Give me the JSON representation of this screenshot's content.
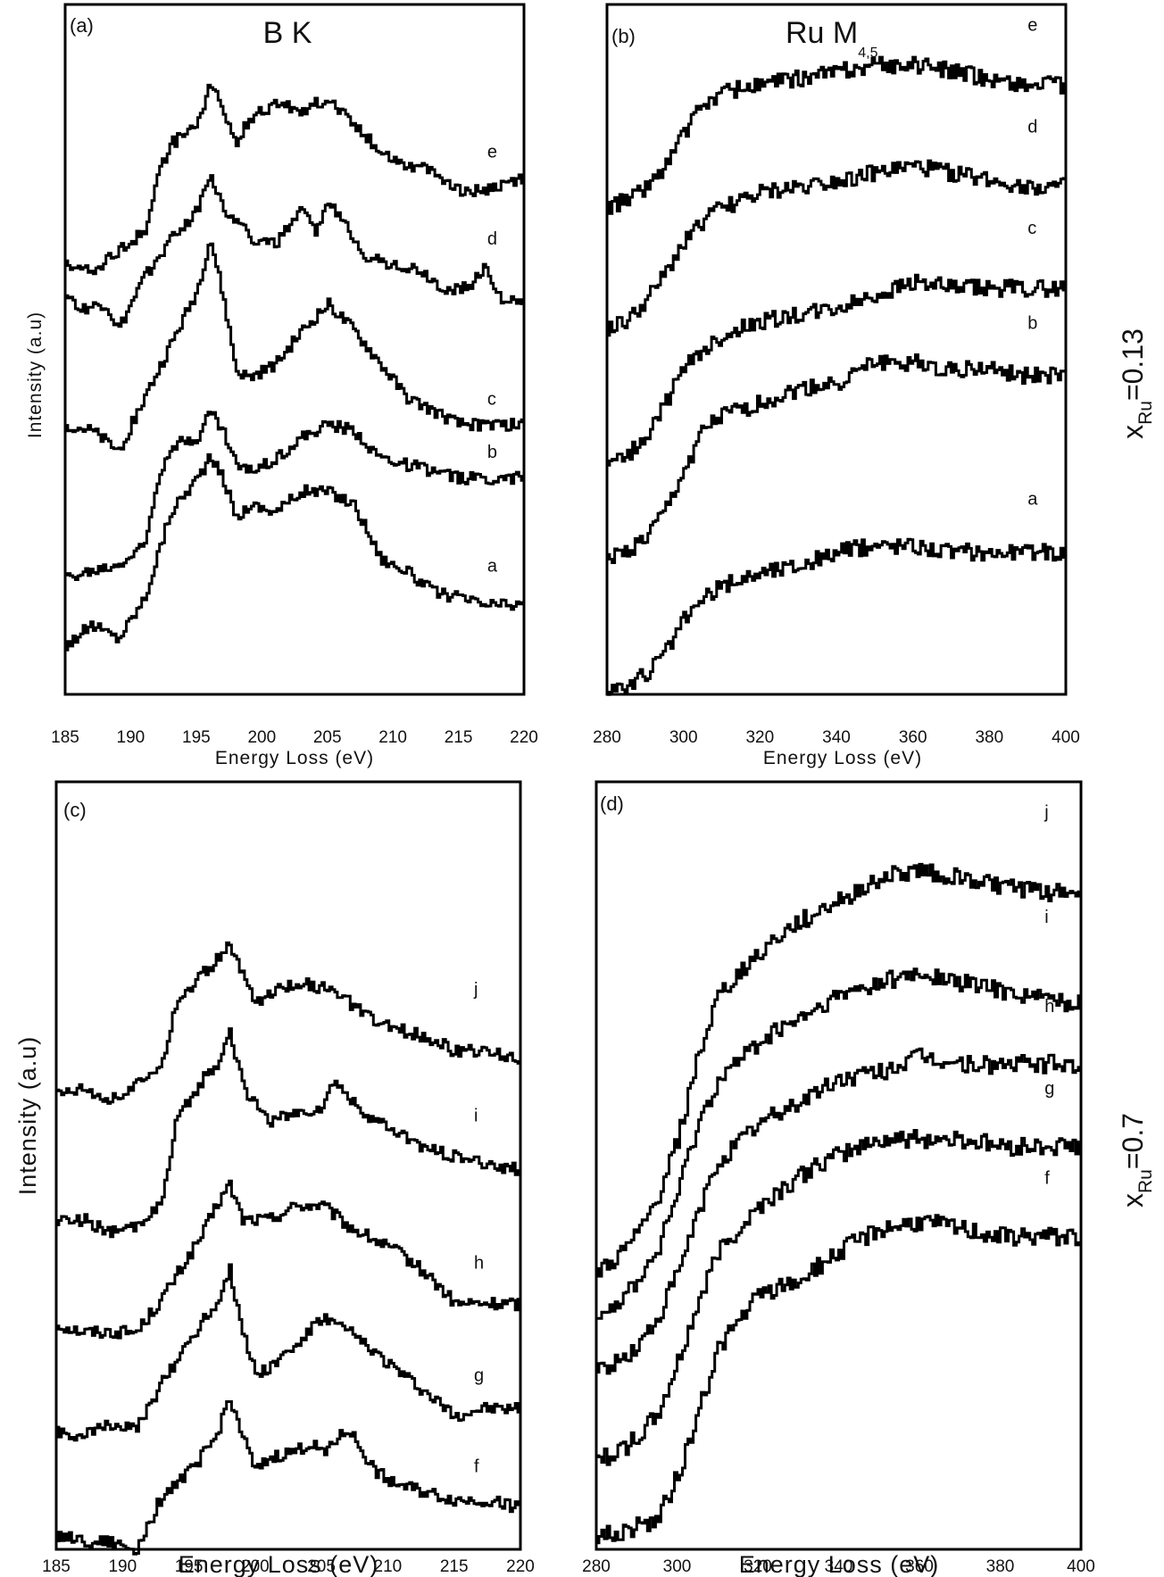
{
  "colors": {
    "line": "#000000",
    "background": "#ffffff"
  },
  "side_labels": [
    {
      "base": "x",
      "sub": "Ru",
      "rest": "=0.13"
    },
    {
      "base": "x",
      "sub": "Ru",
      "rest": "=0.7"
    }
  ],
  "chart_data": [
    {
      "panel": "(a)",
      "title": "B K",
      "type": "line",
      "xlabel": "Energy Loss (eV)",
      "ylabel": "Intensity (a.u)",
      "xlim": [
        185,
        220
      ],
      "xticks": [
        "185",
        "190",
        "195",
        "200",
        "205",
        "210",
        "215",
        "220"
      ],
      "series": [
        {
          "name": "a",
          "x": [
            185,
            187,
            189,
            191,
            193,
            195,
            196,
            197,
            198,
            199,
            201,
            203,
            205,
            207,
            209,
            211,
            213,
            215,
            217,
            220
          ],
          "y": [
            0.05,
            0.08,
            0.06,
            0.12,
            0.25,
            0.3,
            0.33,
            0.3,
            0.24,
            0.26,
            0.25,
            0.28,
            0.28,
            0.26,
            0.18,
            0.16,
            0.13,
            0.12,
            0.11,
            0.11
          ]
        },
        {
          "name": "b",
          "x": [
            185,
            187,
            189,
            191,
            192,
            193,
            195,
            196,
            197,
            198,
            199,
            201,
            203,
            205,
            207,
            209,
            211,
            213,
            215,
            217,
            220
          ],
          "y": [
            0.15,
            0.16,
            0.17,
            0.2,
            0.3,
            0.35,
            0.36,
            0.4,
            0.37,
            0.32,
            0.31,
            0.33,
            0.36,
            0.38,
            0.37,
            0.33,
            0.32,
            0.31,
            0.3,
            0.3,
            0.3
          ]
        },
        {
          "name": "c",
          "x": [
            185,
            187,
            189,
            191,
            193,
            195,
            196,
            197,
            198,
            199,
            201,
            203,
            205,
            207,
            209,
            211,
            213,
            215,
            217,
            220
          ],
          "y": [
            0.38,
            0.37,
            0.34,
            0.42,
            0.5,
            0.58,
            0.66,
            0.57,
            0.46,
            0.45,
            0.47,
            0.52,
            0.56,
            0.52,
            0.47,
            0.42,
            0.4,
            0.38,
            0.38,
            0.38
          ]
        },
        {
          "name": "d",
          "x": [
            185,
            186,
            188,
            189,
            191,
            193,
            195,
            196,
            197,
            198,
            199,
            201,
            203,
            204,
            205,
            206,
            208,
            210,
            212,
            214,
            216,
            217,
            218,
            220
          ],
          "y": [
            0.58,
            0.55,
            0.56,
            0.52,
            0.6,
            0.66,
            0.7,
            0.76,
            0.7,
            0.69,
            0.66,
            0.65,
            0.7,
            0.67,
            0.71,
            0.69,
            0.63,
            0.62,
            0.61,
            0.58,
            0.59,
            0.62,
            0.57,
            0.56
          ]
        },
        {
          "name": "e",
          "x": [
            185,
            187,
            189,
            191,
            192,
            193,
            195,
            196,
            197,
            198,
            199,
            201,
            203,
            205,
            207,
            209,
            211,
            213,
            215,
            217,
            220
          ],
          "y": [
            0.62,
            0.61,
            0.64,
            0.67,
            0.75,
            0.8,
            0.83,
            0.89,
            0.85,
            0.8,
            0.84,
            0.86,
            0.85,
            0.87,
            0.83,
            0.79,
            0.77,
            0.76,
            0.73,
            0.73,
            0.75
          ]
        }
      ],
      "curve_labels": [
        {
          "text": "e",
          "x": 217.2,
          "y": 0.78
        },
        {
          "text": "d",
          "x": 217.2,
          "y": 0.65
        },
        {
          "text": "c",
          "x": 217.2,
          "y": 0.41
        },
        {
          "text": "b",
          "x": 217.2,
          "y": 0.33
        },
        {
          "text": "a",
          "x": 217.2,
          "y": 0.16
        }
      ]
    },
    {
      "panel": "(b)",
      "title": "Ru M",
      "title_sub": "4,5",
      "type": "line",
      "xlabel": "Energy Loss (eV)",
      "ylabel": "",
      "xlim": [
        280,
        400
      ],
      "xticks": [
        "280",
        "300",
        "320",
        "340",
        "360",
        "380",
        "400"
      ],
      "series": [
        {
          "name": "a",
          "x": [
            280,
            285,
            290,
            295,
            300,
            305,
            310,
            320,
            330,
            340,
            350,
            360,
            370,
            380,
            390,
            400
          ],
          "y": [
            0.0,
            0.0,
            0.02,
            0.05,
            0.1,
            0.13,
            0.15,
            0.17,
            0.18,
            0.2,
            0.21,
            0.21,
            0.2,
            0.2,
            0.2,
            0.2
          ]
        },
        {
          "name": "b",
          "x": [
            280,
            285,
            290,
            295,
            300,
            305,
            310,
            320,
            330,
            340,
            350,
            360,
            370,
            380,
            390,
            400
          ],
          "y": [
            0.19,
            0.2,
            0.22,
            0.26,
            0.32,
            0.38,
            0.4,
            0.42,
            0.44,
            0.45,
            0.48,
            0.48,
            0.47,
            0.47,
            0.46,
            0.46
          ]
        },
        {
          "name": "c",
          "x": [
            280,
            285,
            290,
            295,
            300,
            305,
            310,
            320,
            330,
            340,
            350,
            360,
            370,
            380,
            390,
            400
          ],
          "y": [
            0.33,
            0.34,
            0.37,
            0.42,
            0.47,
            0.5,
            0.52,
            0.54,
            0.55,
            0.56,
            0.58,
            0.6,
            0.59,
            0.59,
            0.59,
            0.59
          ]
        },
        {
          "name": "d",
          "x": [
            280,
            285,
            290,
            295,
            300,
            305,
            310,
            320,
            330,
            340,
            350,
            360,
            370,
            380,
            390,
            400
          ],
          "y": [
            0.53,
            0.54,
            0.57,
            0.61,
            0.66,
            0.69,
            0.71,
            0.73,
            0.74,
            0.75,
            0.76,
            0.77,
            0.76,
            0.75,
            0.74,
            0.74
          ]
        },
        {
          "name": "e",
          "x": [
            280,
            285,
            290,
            295,
            300,
            305,
            310,
            320,
            330,
            340,
            350,
            360,
            370,
            380,
            390,
            400
          ],
          "y": [
            0.71,
            0.72,
            0.74,
            0.77,
            0.82,
            0.86,
            0.88,
            0.89,
            0.9,
            0.91,
            0.92,
            0.92,
            0.91,
            0.9,
            0.89,
            0.89
          ]
        }
      ],
      "curve_labels": [
        {
          "text": "e",
          "x": 390,
          "y": 0.97
        },
        {
          "text": "d",
          "x": 390,
          "y": 0.82
        },
        {
          "text": "c",
          "x": 390,
          "y": 0.67
        },
        {
          "text": "b",
          "x": 390,
          "y": 0.53
        },
        {
          "text": "a",
          "x": 390,
          "y": 0.27
        }
      ]
    },
    {
      "panel": "(c)",
      "title": "",
      "type": "line",
      "xlabel": "Energy Loss  (eV)",
      "ylabel": "Intensity (a.u)",
      "xlim": [
        185,
        220
      ],
      "xticks": [
        "185",
        "190",
        "195",
        "200",
        "205",
        "210",
        "215",
        "220"
      ],
      "series": [
        {
          "name": "f",
          "x": [
            185,
            187,
            189,
            191,
            192,
            193,
            195,
            197,
            198,
            199,
            200,
            201,
            203,
            204,
            205,
            207,
            209,
            211,
            213,
            215,
            217,
            220
          ],
          "y": [
            0.02,
            0.01,
            0.01,
            0.0,
            0.04,
            0.08,
            0.11,
            0.16,
            0.22,
            0.16,
            0.11,
            0.13,
            0.14,
            0.15,
            0.14,
            0.17,
            0.11,
            0.09,
            0.08,
            0.07,
            0.07,
            0.06
          ]
        },
        {
          "name": "g",
          "x": [
            185,
            187,
            189,
            191,
            193,
            195,
            197,
            198,
            199,
            200,
            201,
            203,
            205,
            207,
            209,
            211,
            213,
            215,
            217,
            220
          ],
          "y": [
            0.17,
            0.16,
            0.18,
            0.17,
            0.24,
            0.3,
            0.35,
            0.4,
            0.31,
            0.25,
            0.26,
            0.29,
            0.33,
            0.31,
            0.28,
            0.25,
            0.22,
            0.19,
            0.2,
            0.2
          ]
        },
        {
          "name": "h",
          "x": [
            185,
            187,
            189,
            191,
            193,
            195,
            196,
            197,
            198,
            199,
            201,
            203,
            205,
            207,
            209,
            211,
            213,
            215,
            217,
            220
          ],
          "y": [
            0.32,
            0.31,
            0.31,
            0.31,
            0.36,
            0.42,
            0.45,
            0.49,
            0.52,
            0.47,
            0.47,
            0.49,
            0.49,
            0.46,
            0.44,
            0.42,
            0.39,
            0.35,
            0.35,
            0.35
          ]
        },
        {
          "name": "i",
          "x": [
            185,
            187,
            189,
            191,
            193,
            194,
            195,
            196,
            197,
            198,
            199,
            201,
            203,
            205,
            206,
            207,
            209,
            211,
            213,
            215,
            217,
            220
          ],
          "y": [
            0.47,
            0.47,
            0.45,
            0.46,
            0.5,
            0.61,
            0.64,
            0.67,
            0.69,
            0.74,
            0.66,
            0.61,
            0.62,
            0.63,
            0.67,
            0.64,
            0.61,
            0.59,
            0.57,
            0.56,
            0.55,
            0.54
          ]
        },
        {
          "name": "j",
          "x": [
            185,
            187,
            189,
            191,
            193,
            194,
            195,
            196,
            197,
            198,
            199,
            200,
            201,
            203,
            205,
            207,
            209,
            211,
            213,
            215,
            217,
            220
          ],
          "y": [
            0.65,
            0.66,
            0.64,
            0.66,
            0.7,
            0.78,
            0.8,
            0.82,
            0.84,
            0.86,
            0.82,
            0.78,
            0.79,
            0.81,
            0.8,
            0.78,
            0.75,
            0.74,
            0.73,
            0.71,
            0.71,
            0.7
          ]
        }
      ],
      "curve_labels": [
        {
          "text": "j",
          "x": 216.5,
          "y": 0.79
        },
        {
          "text": "i",
          "x": 216.5,
          "y": 0.61
        },
        {
          "text": "h",
          "x": 216.5,
          "y": 0.4
        },
        {
          "text": "g",
          "x": 216.5,
          "y": 0.24
        },
        {
          "text": "f",
          "x": 216.5,
          "y": 0.11
        }
      ]
    },
    {
      "panel": "(d)",
      "title": "",
      "type": "line",
      "xlabel": "Energy Loss (eV)",
      "ylabel": "",
      "xlim": [
        280,
        400
      ],
      "xticks": [
        "280",
        "300",
        "320",
        "340",
        "360",
        "380",
        "400"
      ],
      "series": [
        {
          "name": "f",
          "x": [
            280,
            285,
            290,
            295,
            300,
            305,
            310,
            320,
            330,
            340,
            350,
            360,
            370,
            380,
            390,
            400
          ],
          "y": [
            0.02,
            0.02,
            0.03,
            0.04,
            0.1,
            0.18,
            0.27,
            0.34,
            0.36,
            0.4,
            0.43,
            0.44,
            0.43,
            0.42,
            0.42,
            0.42
          ]
        },
        {
          "name": "g",
          "x": [
            280,
            285,
            290,
            295,
            300,
            305,
            310,
            320,
            330,
            340,
            350,
            360,
            370,
            380,
            390,
            400
          ],
          "y": [
            0.12,
            0.13,
            0.15,
            0.18,
            0.25,
            0.33,
            0.4,
            0.46,
            0.5,
            0.53,
            0.55,
            0.55,
            0.55,
            0.54,
            0.54,
            0.54
          ]
        },
        {
          "name": "h",
          "x": [
            280,
            285,
            290,
            295,
            300,
            305,
            310,
            320,
            330,
            340,
            350,
            360,
            370,
            380,
            390,
            400
          ],
          "y": [
            0.24,
            0.25,
            0.27,
            0.31,
            0.37,
            0.45,
            0.52,
            0.57,
            0.6,
            0.63,
            0.64,
            0.66,
            0.65,
            0.65,
            0.65,
            0.65
          ]
        },
        {
          "name": "i",
          "x": [
            280,
            285,
            290,
            295,
            300,
            305,
            310,
            320,
            330,
            340,
            350,
            360,
            370,
            380,
            390,
            400
          ],
          "y": [
            0.32,
            0.33,
            0.36,
            0.4,
            0.48,
            0.57,
            0.63,
            0.68,
            0.71,
            0.74,
            0.76,
            0.77,
            0.76,
            0.75,
            0.74,
            0.73
          ]
        },
        {
          "name": "j",
          "x": [
            280,
            285,
            290,
            295,
            300,
            305,
            310,
            320,
            330,
            340,
            350,
            360,
            370,
            380,
            390,
            400
          ],
          "y": [
            0.37,
            0.39,
            0.42,
            0.47,
            0.55,
            0.66,
            0.74,
            0.8,
            0.84,
            0.87,
            0.9,
            0.91,
            0.9,
            0.89,
            0.88,
            0.88
          ]
        }
      ],
      "curve_labels": [
        {
          "text": "j",
          "x": 391,
          "y": 0.98
        },
        {
          "text": "i",
          "x": 391,
          "y": 0.84
        },
        {
          "text": "h",
          "x": 391,
          "y": 0.72
        },
        {
          "text": "g",
          "x": 391,
          "y": 0.61
        },
        {
          "text": "f",
          "x": 391,
          "y": 0.49
        }
      ]
    }
  ]
}
